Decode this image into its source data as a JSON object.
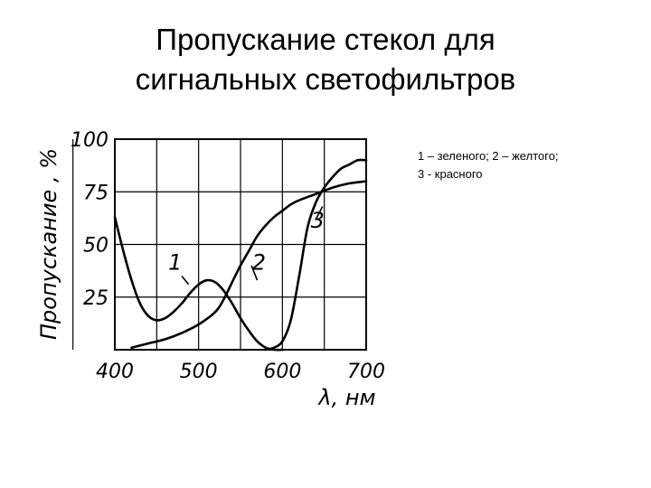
{
  "slide": {
    "title_lines": [
      "Пропускание стекол для",
      "сигнальных светофильтров"
    ],
    "note_lines": [
      "1 – зеленого; 2 – желтого;",
      "3 - красного"
    ]
  },
  "chart_data": {
    "type": "line",
    "title": "",
    "xlabel": "λ, нм",
    "ylabel": "Пропускание , %",
    "xlim": [
      400,
      700
    ],
    "ylim": [
      0,
      100
    ],
    "xticks": [
      400,
      500,
      600,
      700
    ],
    "yticks": [
      25,
      50,
      75,
      100
    ],
    "grid": true,
    "line_color": "#000000",
    "series": [
      {
        "name": "1",
        "x": [
          400,
          410,
          420,
          430,
          440,
          450,
          460,
          470,
          480,
          490,
          500,
          510,
          520,
          530,
          540,
          550,
          560,
          570,
          580,
          590,
          600
        ],
        "y": [
          63,
          47,
          33,
          22,
          16,
          14,
          15,
          18,
          22,
          27,
          31,
          33,
          32,
          28,
          22,
          15,
          9,
          4,
          1,
          0,
          0
        ]
      },
      {
        "name": "2",
        "x": [
          420,
          440,
          460,
          480,
          500,
          520,
          530,
          540,
          550,
          560,
          570,
          580,
          590,
          600,
          610,
          620,
          640,
          660,
          680,
          700
        ],
        "y": [
          1,
          3,
          5,
          8,
          12,
          18,
          24,
          32,
          40,
          47,
          54,
          59,
          63,
          66,
          69,
          71,
          74,
          77,
          79,
          80
        ]
      },
      {
        "name": "3",
        "x": [
          580,
          590,
          600,
          610,
          620,
          630,
          640,
          650,
          660,
          670,
          680,
          690,
          700
        ],
        "y": [
          0,
          1,
          4,
          14,
          35,
          58,
          70,
          77,
          82,
          86,
          88,
          90,
          90
        ]
      }
    ],
    "annotations": [
      {
        "text": "1",
        "x": 472,
        "y": 38
      },
      {
        "text": "2",
        "x": 572,
        "y": 38
      },
      {
        "text": "3",
        "x": 642,
        "y": 58
      }
    ]
  }
}
